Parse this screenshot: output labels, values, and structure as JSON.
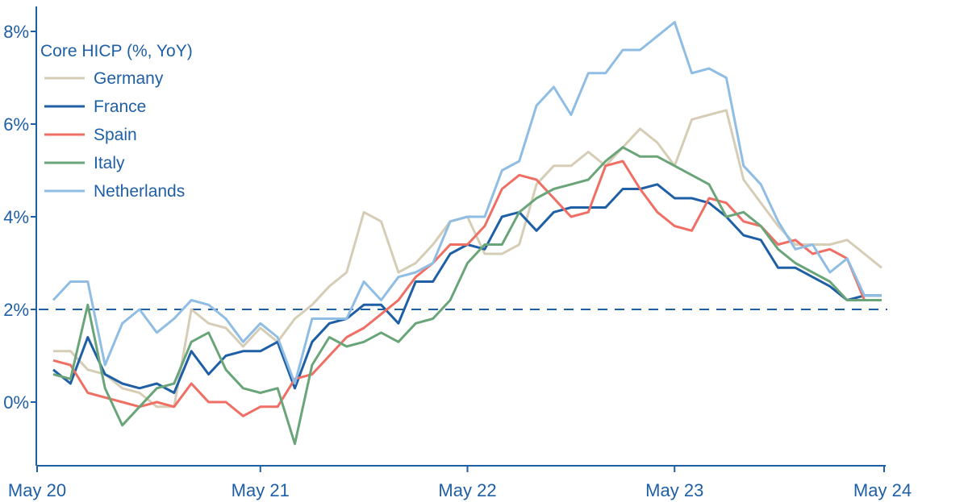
{
  "chart_data": {
    "type": "line",
    "legend_title": "Core HICP (%, YoY)",
    "legend_position": "top-left",
    "x_tick_labels": [
      "May 20",
      "May 21",
      "May 22",
      "May 23",
      "May 24"
    ],
    "x_range": [
      "2020-05",
      "2024-05"
    ],
    "y_tick_labels": [
      "0%",
      "2%",
      "4%",
      "6%",
      "8%"
    ],
    "y_ticks": [
      0,
      2,
      4,
      6,
      8
    ],
    "ylim": [
      -1.4,
      8.5
    ],
    "reference_line": {
      "value": 2,
      "style": "dashed",
      "color": "#1f5fa6"
    },
    "axis_color": "#1f5fa6",
    "x": [
      "2020-05",
      "2020-06",
      "2020-07",
      "2020-08",
      "2020-09",
      "2020-10",
      "2020-11",
      "2020-12",
      "2021-01",
      "2021-02",
      "2021-03",
      "2021-04",
      "2021-05",
      "2021-06",
      "2021-07",
      "2021-08",
      "2021-09",
      "2021-10",
      "2021-11",
      "2021-12",
      "2022-01",
      "2022-02",
      "2022-03",
      "2022-04",
      "2022-05",
      "2022-06",
      "2022-07",
      "2022-08",
      "2022-09",
      "2022-10",
      "2022-11",
      "2022-12",
      "2023-01",
      "2023-02",
      "2023-03",
      "2023-04",
      "2023-05",
      "2023-06",
      "2023-07",
      "2023-08",
      "2023-09",
      "2023-10",
      "2023-11",
      "2023-12",
      "2024-01",
      "2024-02",
      "2024-03",
      "2024-04",
      "2024-05"
    ],
    "series": [
      {
        "name": "Germany",
        "color": "#d6cdb7",
        "values": [
          1.1,
          1.1,
          0.7,
          0.6,
          0.3,
          0.2,
          -0.1,
          -0.1,
          2.0,
          1.7,
          1.6,
          1.2,
          1.6,
          1.3,
          1.8,
          2.1,
          2.5,
          2.8,
          4.1,
          3.9,
          2.8,
          3.0,
          3.4,
          3.9,
          4.0,
          3.2,
          3.2,
          3.4,
          4.7,
          5.1,
          5.1,
          5.4,
          5.1,
          5.5,
          5.9,
          5.6,
          5.1,
          6.1,
          6.2,
          6.3,
          4.8,
          4.3,
          3.8,
          3.4,
          3.4,
          3.4,
          3.5,
          3.2,
          2.9
        ]
      },
      {
        "name": "France",
        "color": "#1f5fa6",
        "values": [
          0.7,
          0.4,
          1.4,
          0.6,
          0.4,
          0.3,
          0.4,
          0.2,
          1.1,
          0.6,
          1.0,
          1.1,
          1.1,
          1.3,
          0.3,
          1.3,
          1.7,
          1.8,
          2.1,
          2.1,
          1.7,
          2.6,
          2.6,
          3.2,
          3.4,
          3.3,
          4.0,
          4.1,
          3.7,
          4.1,
          4.2,
          4.2,
          4.2,
          4.6,
          4.6,
          4.7,
          4.4,
          4.4,
          4.3,
          4.0,
          3.6,
          3.5,
          2.9,
          2.9,
          2.7,
          2.5,
          2.2,
          2.3,
          2.3
        ]
      },
      {
        "name": "Spain",
        "color": "#ef6f65",
        "values": [
          0.9,
          0.8,
          0.2,
          0.1,
          0.0,
          -0.1,
          0.0,
          -0.1,
          0.4,
          0.0,
          0.0,
          -0.3,
          -0.1,
          -0.1,
          0.5,
          0.6,
          1.0,
          1.4,
          1.6,
          1.9,
          2.2,
          2.7,
          3.0,
          3.4,
          3.4,
          3.8,
          4.6,
          4.9,
          4.8,
          4.4,
          4.0,
          4.1,
          5.1,
          5.2,
          4.6,
          4.1,
          3.8,
          3.7,
          4.4,
          4.3,
          3.9,
          3.8,
          3.4,
          3.5,
          3.2,
          3.3,
          3.1,
          2.2,
          2.2
        ]
      },
      {
        "name": "Italy",
        "color": "#6aa579",
        "values": [
          0.6,
          0.5,
          2.1,
          0.3,
          -0.5,
          -0.1,
          0.3,
          0.4,
          1.3,
          1.5,
          0.7,
          0.3,
          0.2,
          0.3,
          -0.9,
          0.8,
          1.4,
          1.2,
          1.3,
          1.5,
          1.3,
          1.7,
          1.8,
          2.2,
          3.0,
          3.4,
          3.4,
          4.1,
          4.4,
          4.6,
          4.7,
          4.8,
          5.2,
          5.5,
          5.3,
          5.3,
          5.1,
          4.9,
          4.7,
          4.0,
          4.1,
          3.8,
          3.3,
          3.0,
          2.8,
          2.6,
          2.2,
          2.2,
          2.2
        ]
      },
      {
        "name": "Netherlands",
        "color": "#8fbde3",
        "values": [
          2.2,
          2.6,
          2.6,
          0.8,
          1.7,
          2.0,
          1.5,
          1.8,
          2.2,
          2.1,
          1.8,
          1.3,
          1.7,
          1.4,
          0.4,
          1.8,
          1.8,
          1.8,
          2.6,
          2.2,
          2.7,
          2.8,
          3.0,
          3.9,
          4.0,
          4.0,
          5.0,
          5.2,
          6.4,
          6.8,
          6.2,
          7.1,
          7.1,
          7.6,
          7.6,
          7.9,
          8.2,
          7.1,
          7.2,
          7.0,
          5.1,
          4.7,
          3.9,
          3.3,
          3.4,
          2.8,
          3.1,
          2.3,
          2.3
        ]
      }
    ]
  }
}
